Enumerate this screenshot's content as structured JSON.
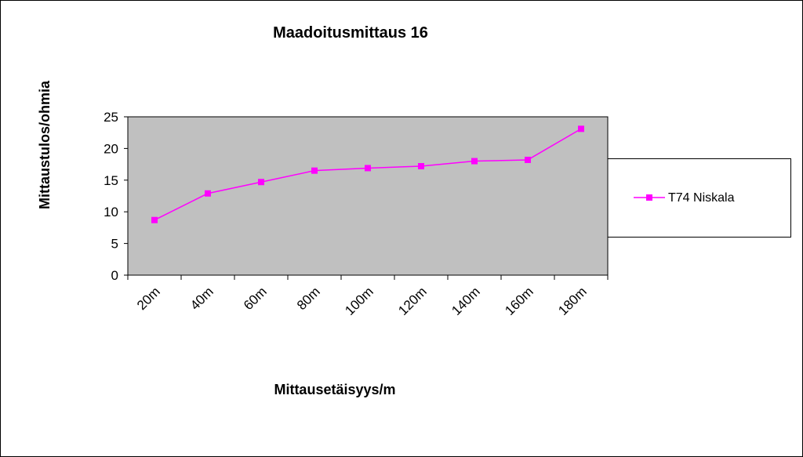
{
  "chart_data": {
    "type": "line",
    "title": "Maadoitusmittaus 16",
    "x_label": "Mittausetäisyys/m",
    "y_label": "Mittaustulos/ohmia",
    "categories": [
      "20m",
      "40m",
      "60m",
      "80m",
      "100m",
      "120m",
      "140m",
      "160m",
      "180m"
    ],
    "series": [
      {
        "name": "T74 Niskala",
        "color": "#ff00ff",
        "values": [
          8.7,
          12.9,
          14.7,
          16.5,
          16.9,
          17.2,
          18.0,
          18.2,
          23.1
        ]
      }
    ],
    "ylim": [
      0,
      25
    ],
    "yticks": [
      0,
      5,
      10,
      15,
      20,
      25
    ],
    "grid": false,
    "legend": "right",
    "plot_background": "#c0c0c0"
  }
}
